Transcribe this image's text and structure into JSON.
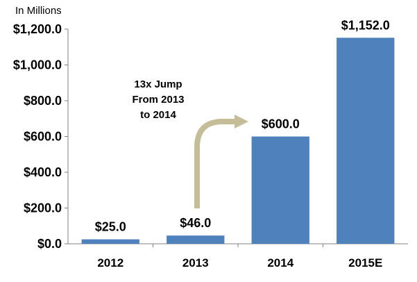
{
  "chart_data": {
    "type": "bar",
    "unit_label": "In Millions",
    "categories": [
      "2012",
      "2013",
      "2014",
      "2015E"
    ],
    "values": [
      25.0,
      46.0,
      600.0,
      1152.0
    ],
    "data_labels": [
      "$25.0",
      "$46.0",
      "$600.0",
      "$1,152.0"
    ],
    "ylim": [
      0,
      1200
    ],
    "yticks": [
      0,
      200,
      400,
      600,
      800,
      1000,
      1200
    ],
    "ytick_labels": [
      "$0.0",
      "$200.0",
      "$400.0",
      "$600.0",
      "$800.0",
      "$1,000.0",
      "$1,200.0"
    ],
    "grid": false,
    "bar_color": "#4F81BD",
    "annotation": {
      "lines": [
        "13x Jump",
        "From 2013",
        "to 2014"
      ],
      "arrow_color": "#C4BD97",
      "from_category": "2013",
      "to_category": "2014"
    }
  }
}
